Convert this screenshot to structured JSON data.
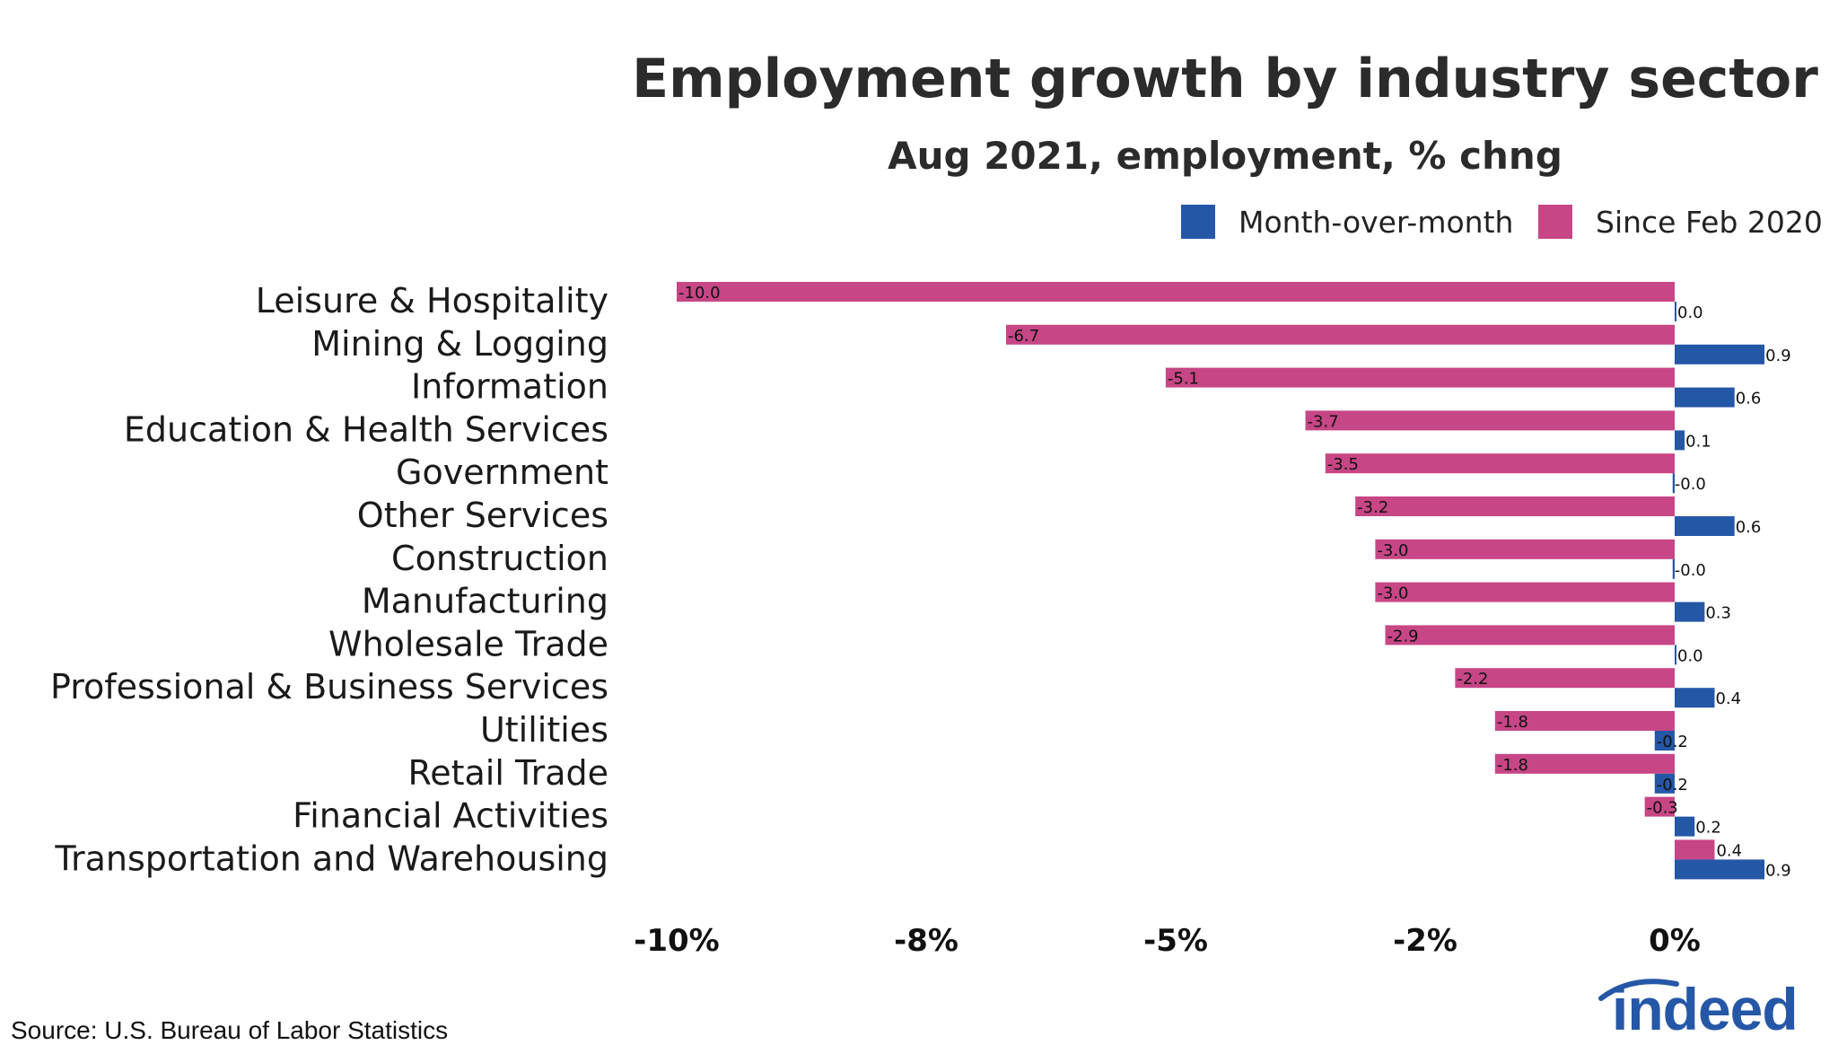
{
  "chart_data": {
    "type": "bar",
    "orientation": "horizontal",
    "title": "Employment growth by industry sector",
    "subtitle": "Aug 2021, employment, % chng",
    "categories": [
      "Leisure & Hospitality",
      "Mining & Logging",
      "Information",
      "Education & Health Services",
      "Government",
      "Other Services",
      "Construction",
      "Manufacturing",
      "Wholesale Trade",
      "Professional & Business Services",
      "Utilities",
      "Retail Trade",
      "Financial Activities",
      "Transportation and Warehousing"
    ],
    "series": [
      {
        "name": "Since Feb 2020",
        "color": "#c74686",
        "values": [
          -10.0,
          -6.7,
          -5.1,
          -3.7,
          -3.5,
          -3.2,
          -3.0,
          -3.0,
          -2.9,
          -2.2,
          -1.8,
          -1.8,
          -0.3,
          0.4
        ],
        "labels": [
          "-10.0",
          "-6.7",
          "-5.1",
          "-3.7",
          "-3.5",
          "-3.2",
          "-3.0",
          "-3.0",
          "-2.9",
          "-2.2",
          "-1.8",
          "-1.8",
          "-0.3",
          "0.4"
        ]
      },
      {
        "name": "Month-over-month",
        "color": "#2557a7",
        "values": [
          0.0,
          0.9,
          0.6,
          0.1,
          -0.02,
          0.6,
          -0.02,
          0.3,
          0.01,
          0.4,
          -0.2,
          -0.2,
          0.2,
          0.9
        ],
        "labels": [
          "0.0",
          "0.9",
          "0.6",
          "0.1",
          "-0.0",
          "0.6",
          "-0.0",
          "0.3",
          "0.0",
          "0.4",
          "-0.2",
          "-0.2",
          "0.2",
          "0.9"
        ]
      }
    ],
    "legend": {
      "position": "top-right",
      "entries": [
        {
          "name": "Month-over-month",
          "color": "#2557a7"
        },
        {
          "name": "Since Feb 2020",
          "color": "#c74686"
        }
      ]
    },
    "x_ticks": [
      {
        "value": -10,
        "label": "-10%"
      },
      {
        "value": -7.5,
        "label": "-8%"
      },
      {
        "value": -5,
        "label": "-5%"
      },
      {
        "value": -2.5,
        "label": "-2%"
      },
      {
        "value": 0,
        "label": "0%"
      }
    ],
    "xlim": [
      -10,
      1.2
    ],
    "grid": false,
    "xlabel": "",
    "ylabel": ""
  },
  "source": "Source: U.S. Bureau of Labor Statistics",
  "logo": {
    "text": "indeed",
    "color": "#2557a7"
  }
}
